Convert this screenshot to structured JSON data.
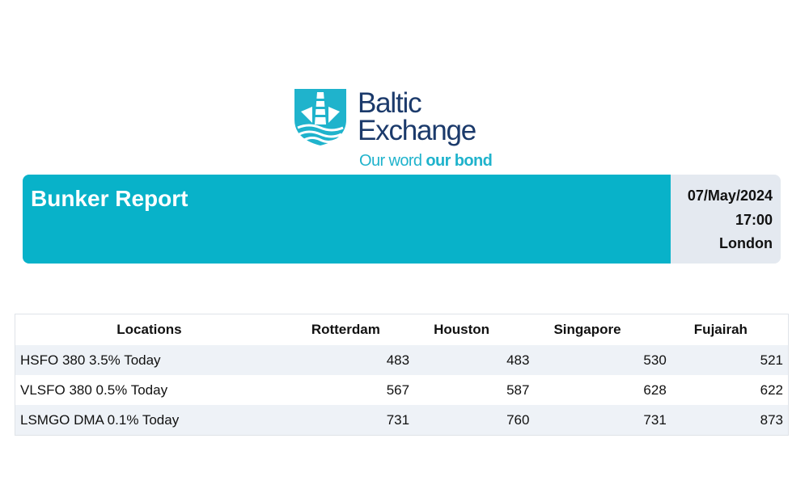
{
  "logo": {
    "line1": "Baltic",
    "line2": "Exchange",
    "tagline_regular": "Our word ",
    "tagline_bold": "our bond",
    "colors": {
      "brand_navy": "#1b3a6b",
      "brand_teal": "#1fb3cc"
    }
  },
  "banner": {
    "title": "Bunker Report",
    "date": "07/May/2024",
    "time": "17:00",
    "location": "London",
    "colors": {
      "main": "#08b2c9",
      "side": "#e4e9f0"
    }
  },
  "table": {
    "headers": [
      "Locations",
      "Rotterdam",
      "Houston",
      "Singapore",
      "Fujairah"
    ],
    "rows": [
      {
        "label": "HSFO 380 3.5% Today",
        "values": [
          "483",
          "483",
          "530",
          "521"
        ]
      },
      {
        "label": "VLSFO 380 0.5% Today",
        "values": [
          "567",
          "587",
          "628",
          "622"
        ]
      },
      {
        "label": "LSMGO DMA 0.1% Today",
        "values": [
          "731",
          "760",
          "731",
          "873"
        ]
      }
    ]
  }
}
